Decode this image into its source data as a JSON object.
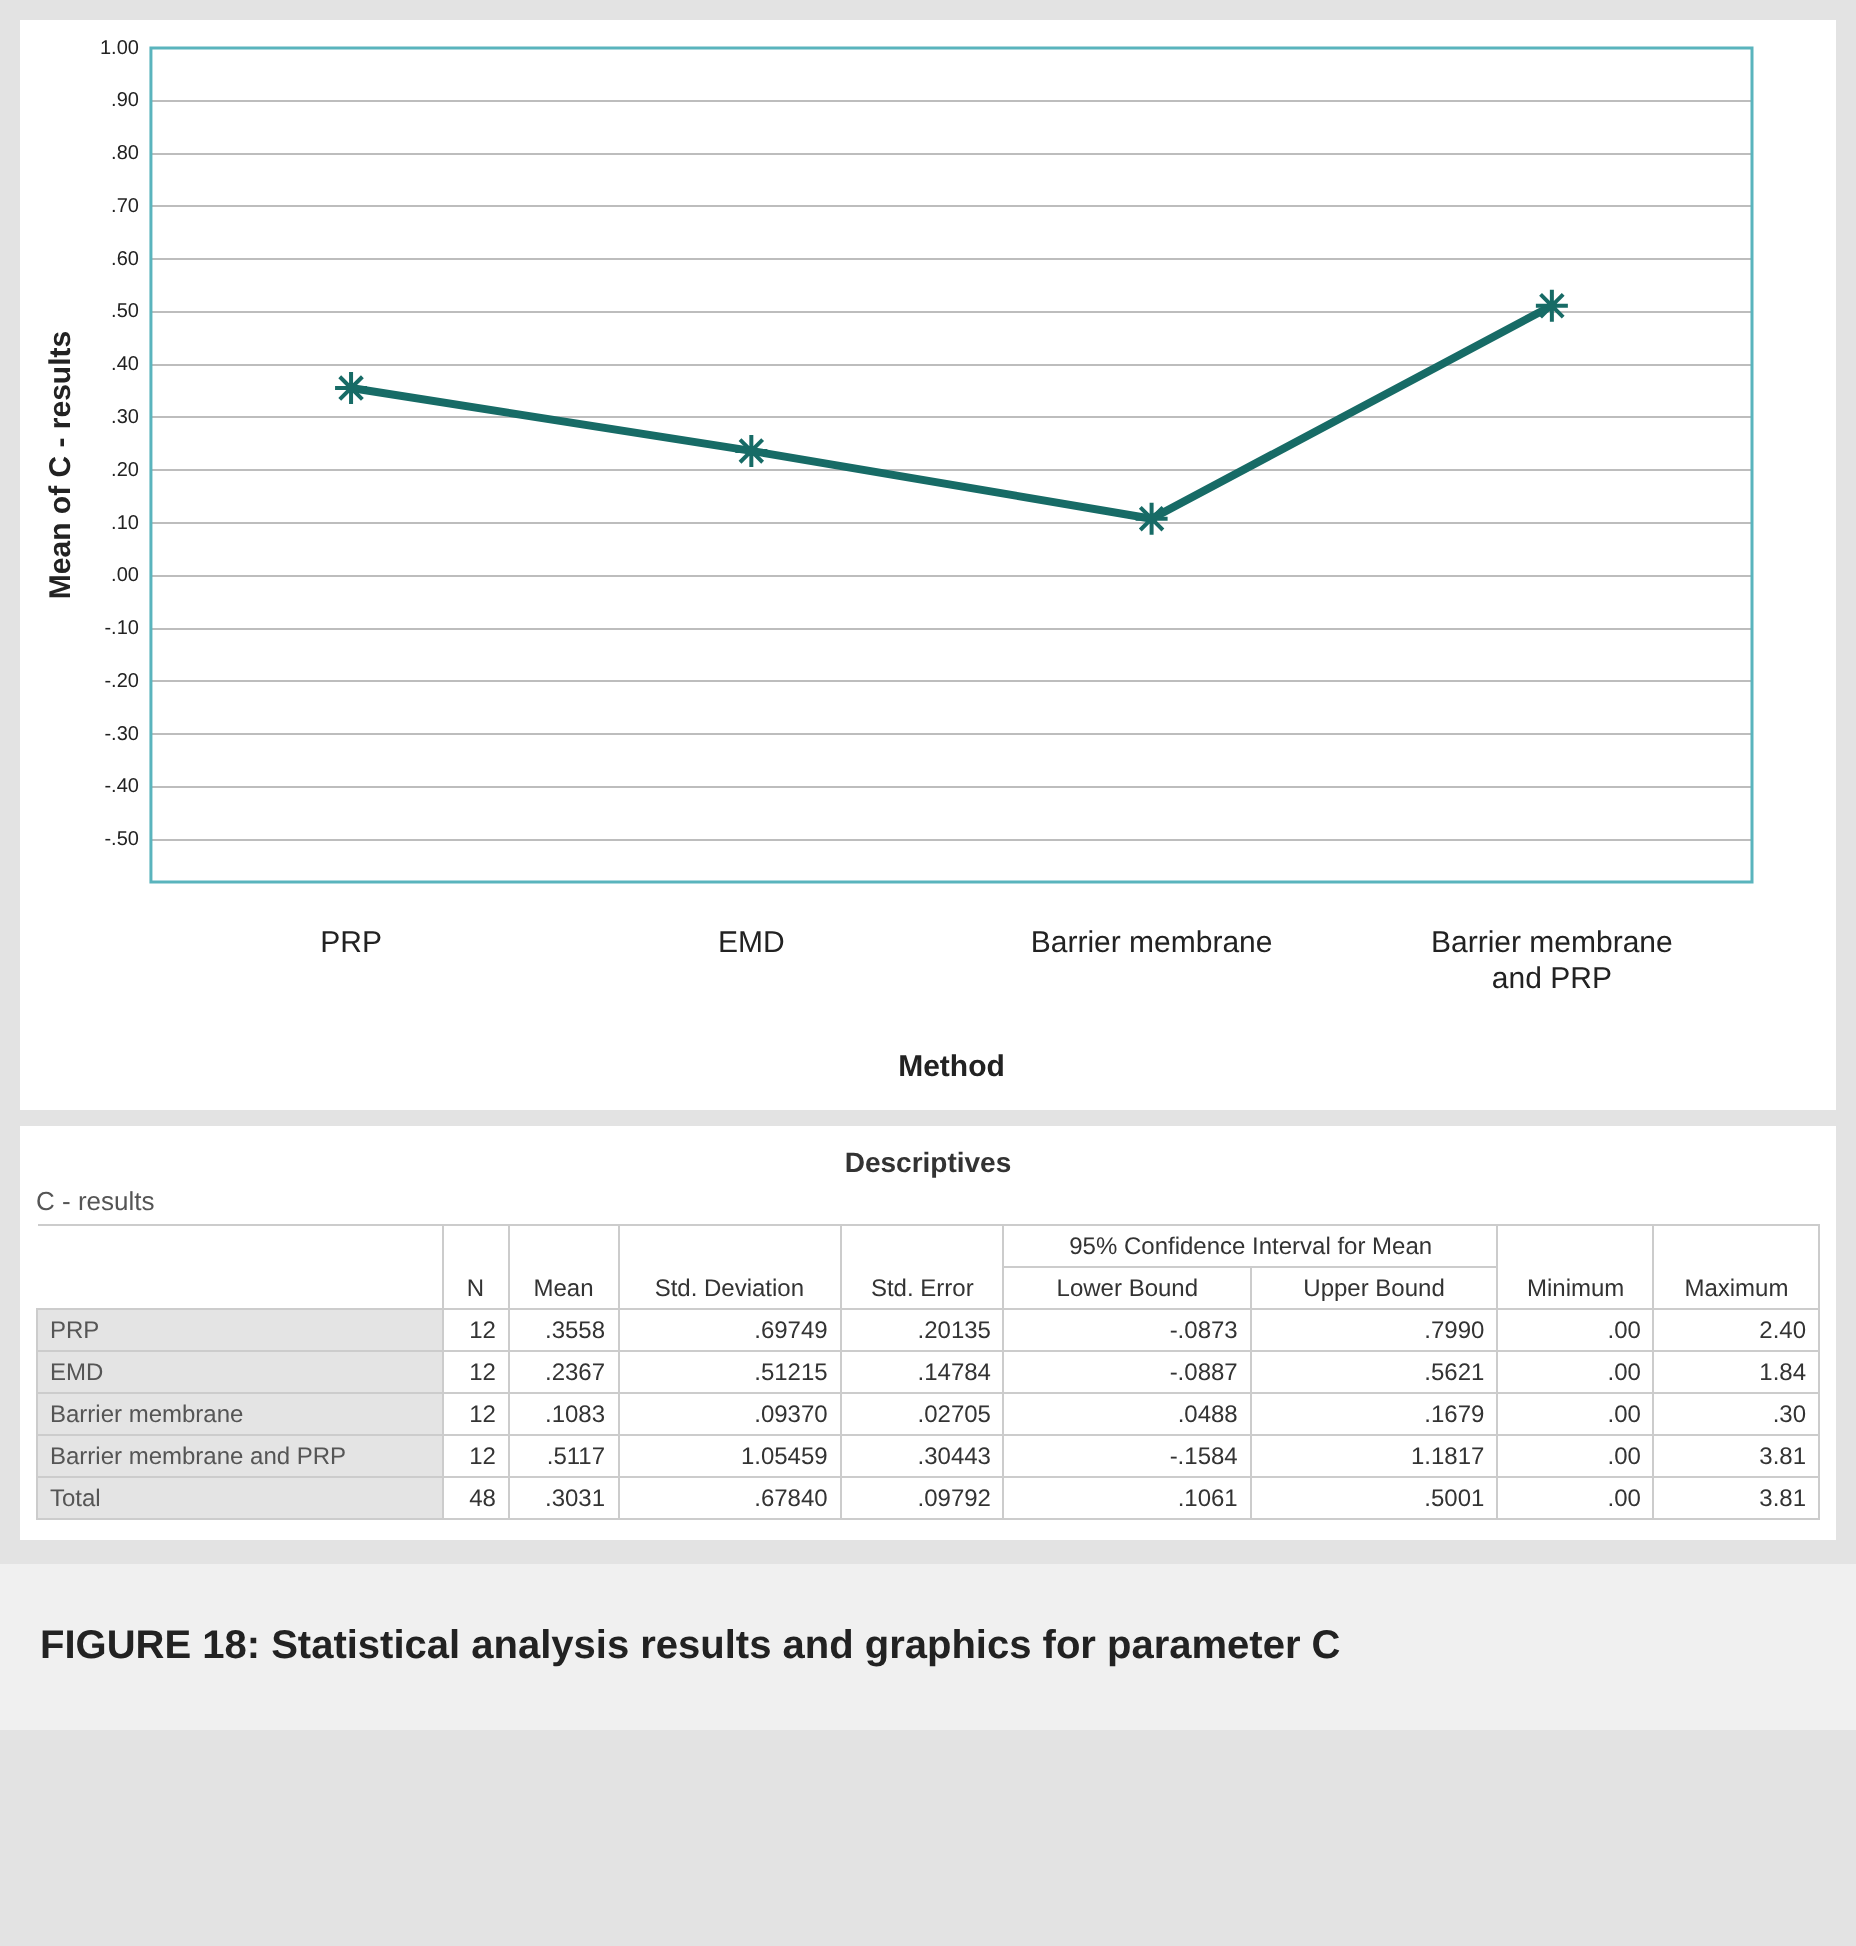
{
  "chart_data": [
    {
      "type": "line",
      "xlabel": "Method",
      "ylabel": "Mean of C - results",
      "categories": [
        "PRP",
        "EMD",
        "Barrier membrane",
        "Barrier membrane and PRP"
      ],
      "series": [
        {
          "color": "#176b66",
          "values": [
            0.3558,
            0.2367,
            0.1083,
            0.5117
          ]
        }
      ],
      "ylim": [
        -0.58,
        1.0
      ],
      "yticks": [
        {
          "value": 1.0,
          "label": "1.00"
        },
        {
          "value": 0.9,
          "label": ".90"
        },
        {
          "value": 0.8,
          "label": ".80"
        },
        {
          "value": 0.7,
          "label": ".70"
        },
        {
          "value": 0.6,
          "label": ".60"
        },
        {
          "value": 0.5,
          "label": ".50"
        },
        {
          "value": 0.4,
          "label": ".40"
        },
        {
          "value": 0.3,
          "label": ".30"
        },
        {
          "value": 0.2,
          "label": ".20"
        },
        {
          "value": 0.1,
          "label": ".10"
        },
        {
          "value": 0,
          "label": ".00"
        },
        {
          "value": -0.1,
          "label": "-.10"
        },
        {
          "value": -0.2,
          "label": "-.20"
        },
        {
          "value": -0.3,
          "label": "-.30"
        },
        {
          "value": -0.4,
          "label": "-.40"
        },
        {
          "value": -0.5,
          "label": "-.50"
        }
      ],
      "grid": "y",
      "marker": "cross"
    },
    {
      "type": "other",
      "title": "Descriptives",
      "subtitle": "C - results",
      "categories": [
        "N",
        "Mean",
        "Std. Deviation",
        "Std. Error",
        "Lower Bound",
        "Upper Bound",
        "Minimum",
        "Maximum"
      ],
      "y_categories": [
        "PRP",
        "EMD",
        "Barrier membrane",
        "Barrier membrane and PRP",
        "Total"
      ],
      "cell_labels": [
        [
          "12",
          ".3558",
          ".69749",
          ".20135",
          "-.0873",
          ".7990",
          ".00",
          "2.40"
        ],
        [
          "12",
          ".2367",
          ".51215",
          ".14784",
          "-.0887",
          ".5621",
          ".00",
          "1.84"
        ],
        [
          "12",
          ".1083",
          ".09370",
          ".02705",
          ".0488",
          ".1679",
          ".00",
          ".30"
        ],
        [
          "12",
          ".5117",
          "1.05459",
          ".30443",
          "-.1584",
          "1.1817",
          ".00",
          "3.81"
        ],
        [
          "48",
          ".3031",
          ".67840",
          ".09792",
          ".1061",
          ".5001",
          ".00",
          "3.81"
        ]
      ],
      "annotations": [
        "95% Confidence Interval for Mean",
        "FIGURE 18: Statistical analysis results and graphics for parameter C"
      ]
    }
  ]
}
